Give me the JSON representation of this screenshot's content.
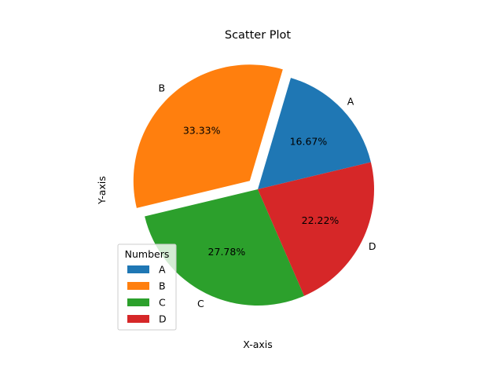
{
  "chart_data": {
    "type": "pie",
    "title": "Scatter Plot",
    "xlabel": "X-axis",
    "ylabel": "Y-axis",
    "categories": [
      "A",
      "B",
      "C",
      "D"
    ],
    "values": [
      16.67,
      33.33,
      27.78,
      22.22
    ],
    "percent_labels": [
      "16.67%",
      "33.33%",
      "27.78%",
      "22.22%"
    ],
    "colors": [
      "#1f77b4",
      "#ff7f0e",
      "#2ca02c",
      "#d62728"
    ],
    "exploded": [
      "B"
    ],
    "legend": {
      "title": "Numbers",
      "placement": "lower-left",
      "entries": [
        "A",
        "B",
        "C",
        "D"
      ]
    }
  }
}
